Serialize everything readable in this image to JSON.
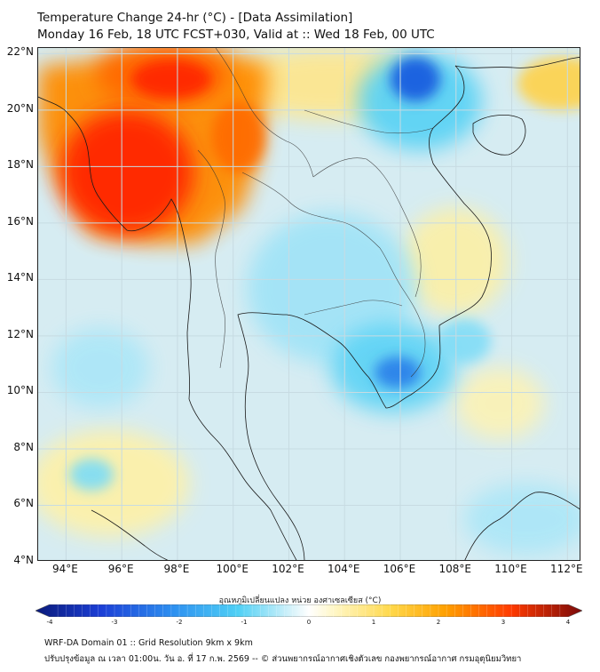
{
  "header": {
    "title_line1": "Temperature Change 24-hr (°C) - [Data Assimilation]",
    "title_line2": "Monday 16 Feb, 18 UTC FCST+030, Valid at :: Wed 18 Feb, 00 UTC"
  },
  "map": {
    "lat_labels": [
      "22°N",
      "20°N",
      "18°N",
      "16°N",
      "14°N",
      "12°N",
      "10°N",
      "8°N",
      "6°N",
      "4°N"
    ],
    "lon_labels": [
      "94°E",
      "96°E",
      "98°E",
      "100°E",
      "102°E",
      "104°E",
      "106°E",
      "108°E",
      "110°E",
      "112°E"
    ],
    "extent": {
      "lon": [
        93.0,
        112.5
      ],
      "lat": [
        4.0,
        22.2
      ]
    },
    "land_color": "#d6ecf2",
    "field_colors": {
      "strong_warm": "#ff2a00",
      "warm": "#ff8c00",
      "mild_warm": "#ffd24a",
      "cool": "#5cd3f5",
      "strong_cool": "#1c64e0"
    }
  },
  "colorbar": {
    "title": "อุณหภูมิเปลี่ยนแปลง หน่วย องศาเซลเซียส (°C)",
    "tick_labels": [
      "-4",
      "-3",
      "-2",
      "-1",
      "0",
      "1",
      "2",
      "3",
      "4"
    ],
    "range": [
      -4,
      4
    ]
  },
  "footer": {
    "line1": "WRF-DA Domain 01 :: Grid Resolution 9km x 9km",
    "line2": "ปรับปรุงข้อมูล ณ เวลา 01:00น. วัน อ. ที่ 17 ก.พ. 2569 -- © ส่วนพยากรณ์อากาศเชิงตัวเลข กองพยากรณ์อากาศ กรมอุตุนิยมวิทยา"
  }
}
